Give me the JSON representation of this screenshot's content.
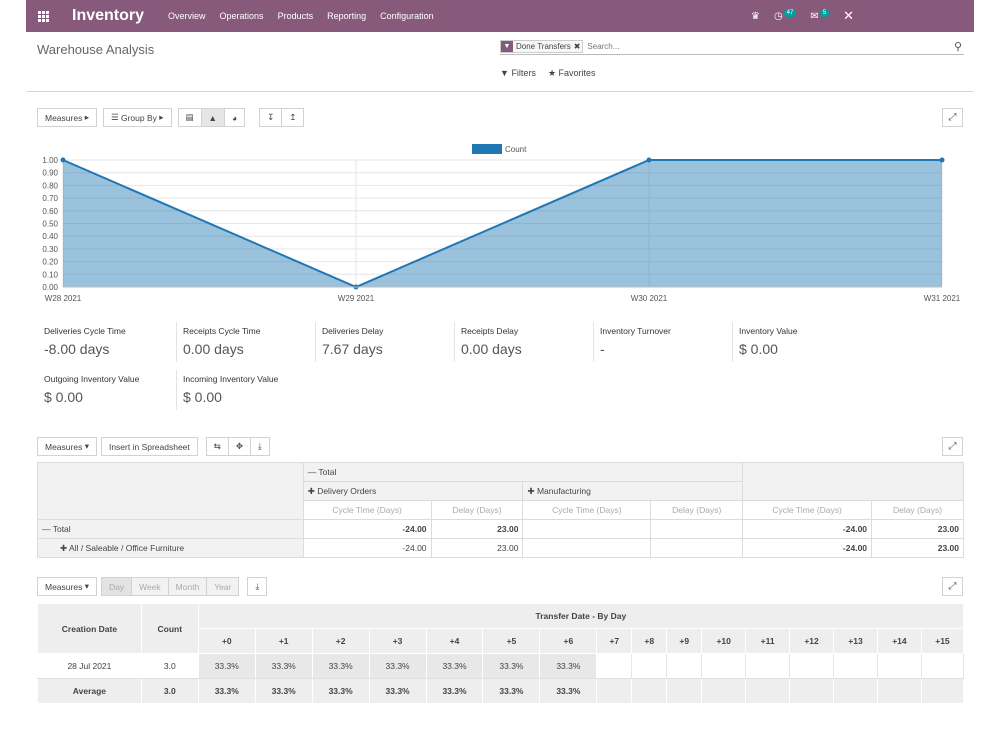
{
  "navbar": {
    "brand": "Inventory",
    "menu": [
      "Overview",
      "Operations",
      "Products",
      "Reporting",
      "Configuration"
    ],
    "activity_count": "47",
    "message_count": "5"
  },
  "control_panel": {
    "breadcrumb": "Warehouse Analysis",
    "facet_label": "Done Transfers",
    "search_placeholder": "Search...",
    "filters_label": "Filters",
    "favorites_label": "Favorites"
  },
  "graph_toolbar": {
    "measures_label": "Measures",
    "group_by_label": "Group By"
  },
  "chart_data": {
    "type": "area",
    "categories": [
      "W28 2021",
      "W29 2021",
      "W30 2021",
      "W31 2021"
    ],
    "series": [
      {
        "name": "Count",
        "values": [
          1.0,
          0.0,
          1.0,
          1.0
        ]
      }
    ],
    "ylim": [
      0,
      1
    ],
    "yticks": [
      "0.00",
      "0.10",
      "0.20",
      "0.30",
      "0.40",
      "0.50",
      "0.60",
      "0.70",
      "0.80",
      "0.90",
      "1.00"
    ],
    "legend": "top-center",
    "grid": true,
    "color": "#1f77b4"
  },
  "kpis": [
    {
      "label": "Deliveries Cycle Time",
      "value": "-8.00 days"
    },
    {
      "label": "Receipts Cycle Time",
      "value": "0.00 days"
    },
    {
      "label": "Deliveries Delay",
      "value": "7.67 days"
    },
    {
      "label": "Receipts Delay",
      "value": "0.00 days"
    },
    {
      "label": "Inventory Turnover",
      "value": "-"
    },
    {
      "label": "Inventory Value",
      "value": "$ 0.00"
    },
    {
      "label": "Outgoing Inventory Value",
      "value": "$ 0.00"
    },
    {
      "label": "Incoming Inventory Value",
      "value": "$ 0.00"
    }
  ],
  "pivot": {
    "measures_label": "Measures",
    "insert_label": "Insert in Spreadsheet",
    "col_total": "Total",
    "col_groups": [
      "Delivery Orders",
      "Manufacturing"
    ],
    "measure_cycle": "Cycle Time (Days)",
    "measure_delay": "Delay (Days)",
    "rows": [
      {
        "label": "Total",
        "cells": [
          "-24.00",
          "23.00",
          "",
          "",
          "-24.00",
          "23.00"
        ]
      },
      {
        "label": "All / Saleable / Office Furniture",
        "cells": [
          "-24.00",
          "23.00",
          "",
          "",
          "-24.00",
          "23.00"
        ]
      }
    ]
  },
  "cohort": {
    "measures_label": "Measures",
    "intervals": [
      "Day",
      "Week",
      "Month",
      "Year"
    ],
    "col_creation": "Creation Date",
    "col_count": "Count",
    "col_group": "Transfer Date - By Day",
    "offsets": [
      "+0",
      "+1",
      "+2",
      "+3",
      "+4",
      "+5",
      "+6",
      "+7",
      "+8",
      "+9",
      "+10",
      "+11",
      "+12",
      "+13",
      "+14",
      "+15"
    ],
    "row": {
      "date": "28 Jul 2021",
      "count": "3.0",
      "values": [
        "33.3%",
        "33.3%",
        "33.3%",
        "33.3%",
        "33.3%",
        "33.3%",
        "33.3%"
      ]
    },
    "average": {
      "label": "Average",
      "count": "3.0",
      "values": [
        "33.3%",
        "33.3%",
        "33.3%",
        "33.3%",
        "33.3%",
        "33.3%",
        "33.3%"
      ]
    }
  }
}
